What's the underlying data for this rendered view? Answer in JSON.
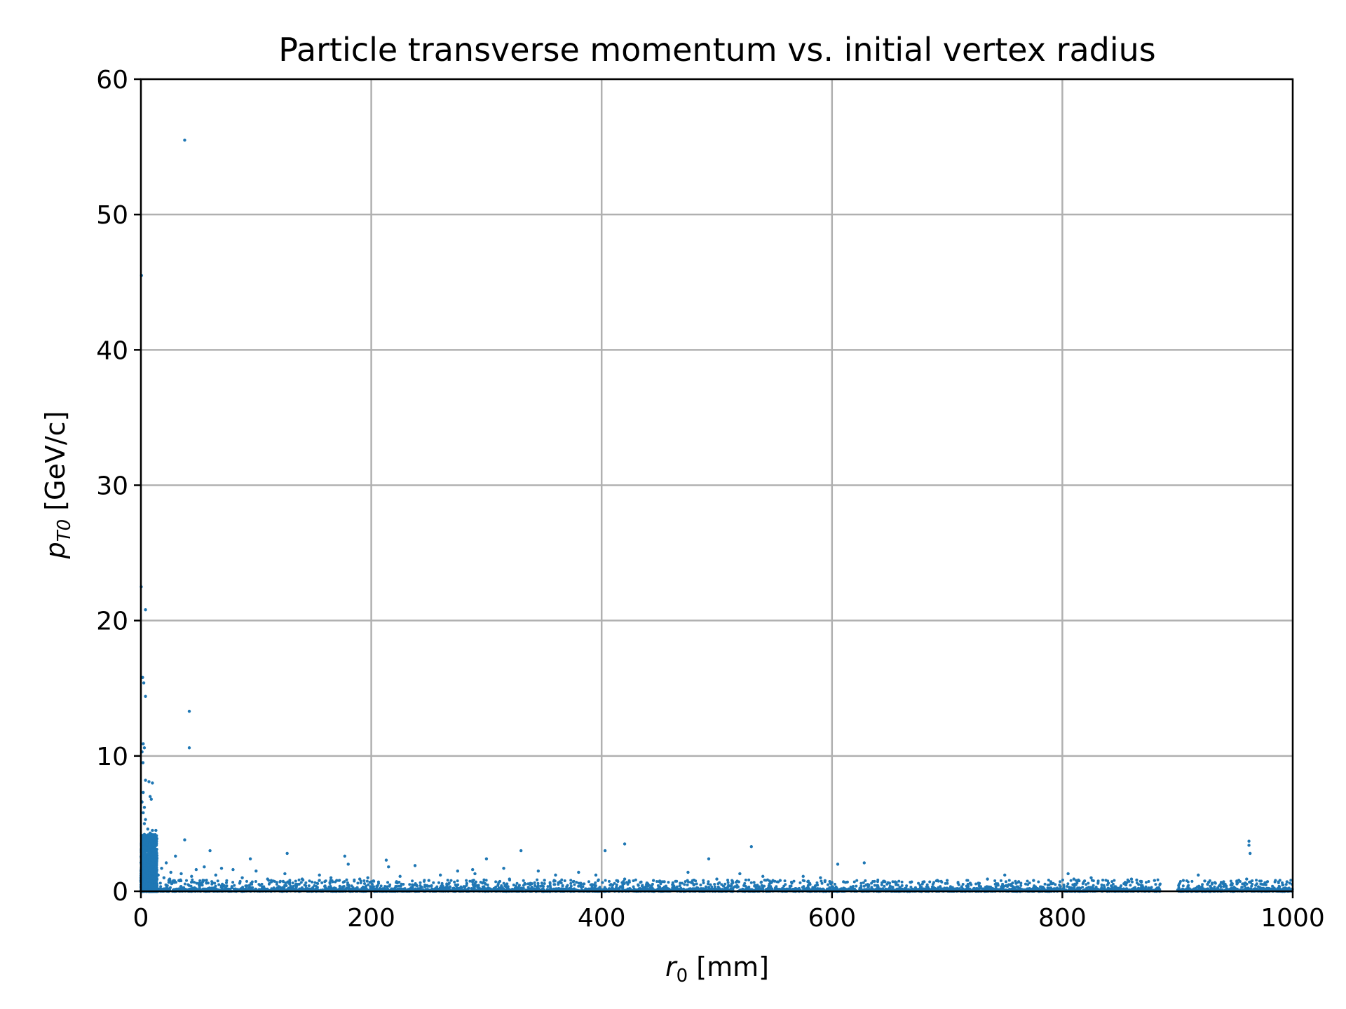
{
  "chart_data": {
    "type": "scatter",
    "title": "Particle transverse momentum vs. initial vertex radius",
    "xlabel": {
      "base": "r",
      "sub": "0",
      "unit": " [mm]"
    },
    "ylabel": {
      "base": "p",
      "sub": "T0",
      "unit": " [GeV/c]"
    },
    "xlim": [
      0,
      1000
    ],
    "ylim": [
      0,
      60
    ],
    "xticks": [
      0,
      200,
      400,
      600,
      800,
      1000
    ],
    "yticks": [
      0,
      10,
      20,
      30,
      40,
      50,
      60
    ],
    "xtick_labels": [
      "0",
      "200",
      "400",
      "600",
      "800",
      "1000"
    ],
    "ytick_labels": [
      "0",
      "10",
      "20",
      "30",
      "40",
      "50",
      "60"
    ],
    "grid": true,
    "marker_color": "#1f77b4",
    "grid_color": "#b0b0b0",
    "series": [
      {
        "points": [
          [
            38,
            55.5
          ],
          [
            0.5,
            45.5
          ],
          [
            0.3,
            22.5
          ],
          [
            4,
            20.8
          ],
          [
            1.5,
            15.8
          ],
          [
            2.5,
            15.4
          ],
          [
            4,
            14.4
          ],
          [
            42,
            13.3
          ],
          [
            42,
            10.6
          ],
          [
            2,
            10.9
          ],
          [
            3,
            10.6
          ],
          [
            1,
            10.3
          ],
          [
            1.8,
            9.5
          ],
          [
            4,
            8.2
          ],
          [
            7,
            8.1
          ],
          [
            10,
            8.0
          ],
          [
            2,
            7.3
          ],
          [
            8,
            7.0
          ],
          [
            9,
            6.8
          ],
          [
            1,
            6.6
          ],
          [
            3,
            6.2
          ],
          [
            2,
            5.8
          ],
          [
            4,
            5.3
          ],
          [
            3,
            5.0
          ],
          [
            6,
            4.6
          ],
          [
            10,
            4.5
          ],
          [
            13,
            4.5
          ],
          [
            8,
            4.3
          ],
          [
            3,
            4.2
          ],
          [
            5,
            4.0
          ],
          [
            12,
            3.9
          ],
          [
            9,
            3.7
          ],
          [
            1.5,
            3.5
          ],
          [
            4,
            3.2
          ],
          [
            7,
            3.0
          ],
          [
            11,
            2.8
          ],
          [
            6,
            2.5
          ],
          [
            3,
            2.2
          ],
          [
            10,
            2.0
          ],
          [
            13,
            1.8
          ],
          [
            8,
            1.6
          ],
          [
            2,
            1.4
          ],
          [
            38,
            3.8
          ],
          [
            60,
            3.0
          ],
          [
            127,
            2.8
          ],
          [
            177,
            2.6
          ],
          [
            95,
            2.4
          ],
          [
            213,
            2.3
          ],
          [
            300,
            2.4
          ],
          [
            330,
            3.0
          ],
          [
            403,
            3.0
          ],
          [
            420,
            3.5
          ],
          [
            493,
            2.4
          ],
          [
            530,
            3.3
          ],
          [
            605,
            2.0
          ],
          [
            628,
            2.1
          ],
          [
            750,
            1.2
          ],
          [
            805,
            1.3
          ],
          [
            962,
            3.7
          ],
          [
            962,
            3.4
          ],
          [
            963,
            2.8
          ],
          [
            180,
            2.0
          ],
          [
            215,
            1.8
          ],
          [
            238,
            1.9
          ],
          [
            288,
            1.6
          ],
          [
            315,
            1.7
          ],
          [
            290,
            1.3
          ],
          [
            275,
            1.5
          ],
          [
            345,
            1.5
          ],
          [
            380,
            1.4
          ],
          [
            55,
            1.8
          ],
          [
            48,
            1.6
          ],
          [
            70,
            1.7
          ],
          [
            80,
            1.6
          ],
          [
            100,
            1.5
          ],
          [
            125,
            1.3
          ],
          [
            155,
            1.2
          ],
          [
            165,
            1.0
          ],
          [
            197,
            1.0
          ],
          [
            225,
            1.1
          ],
          [
            260,
            1.2
          ],
          [
            360,
            1.2
          ],
          [
            395,
            1.2
          ],
          [
            475,
            1.4
          ],
          [
            520,
            1.3
          ],
          [
            540,
            1.1
          ],
          [
            575,
            1.1
          ],
          [
            590,
            1.0
          ],
          [
            700,
            0.8
          ],
          [
            735,
            0.9
          ],
          [
            775,
            0.8
          ],
          [
            810,
            0.9
          ],
          [
            825,
            1.0
          ],
          [
            860,
            0.9
          ],
          [
            880,
            0.8
          ],
          [
            905,
            0.8
          ],
          [
            918,
            1.2
          ],
          [
            940,
            0.7
          ],
          [
            995,
            0.7
          ],
          [
            985,
            0.8
          ],
          [
            30,
            2.6
          ],
          [
            22,
            2.1
          ],
          [
            18,
            1.7
          ],
          [
            26,
            1.4
          ],
          [
            35,
            1.3
          ],
          [
            44,
            1.1
          ],
          [
            65,
            1.2
          ],
          [
            88,
            1.0
          ],
          [
            110,
            0.9
          ],
          [
            140,
            0.9
          ],
          [
            170,
            0.8
          ],
          [
            190,
            0.9
          ],
          [
            250,
            0.8
          ],
          [
            320,
            0.9
          ],
          [
            420,
            0.9
          ],
          [
            445,
            0.8
          ],
          [
            500,
            0.9
          ],
          [
            555,
            0.8
          ],
          [
            610,
            0.7
          ],
          [
            650,
            0.6
          ],
          [
            680,
            0.7
          ],
          [
            720,
            0.6
          ],
          [
            760,
            0.6
          ],
          [
            790,
            0.7
          ],
          [
            840,
            0.6
          ],
          [
            930,
            0.6
          ],
          [
            960,
            0.9
          ],
          [
            975,
            0.5
          ],
          [
            15,
            1.2
          ],
          [
            20,
            1.0
          ],
          [
            25,
            0.9
          ],
          [
            33,
            0.8
          ]
        ]
      }
    ]
  }
}
